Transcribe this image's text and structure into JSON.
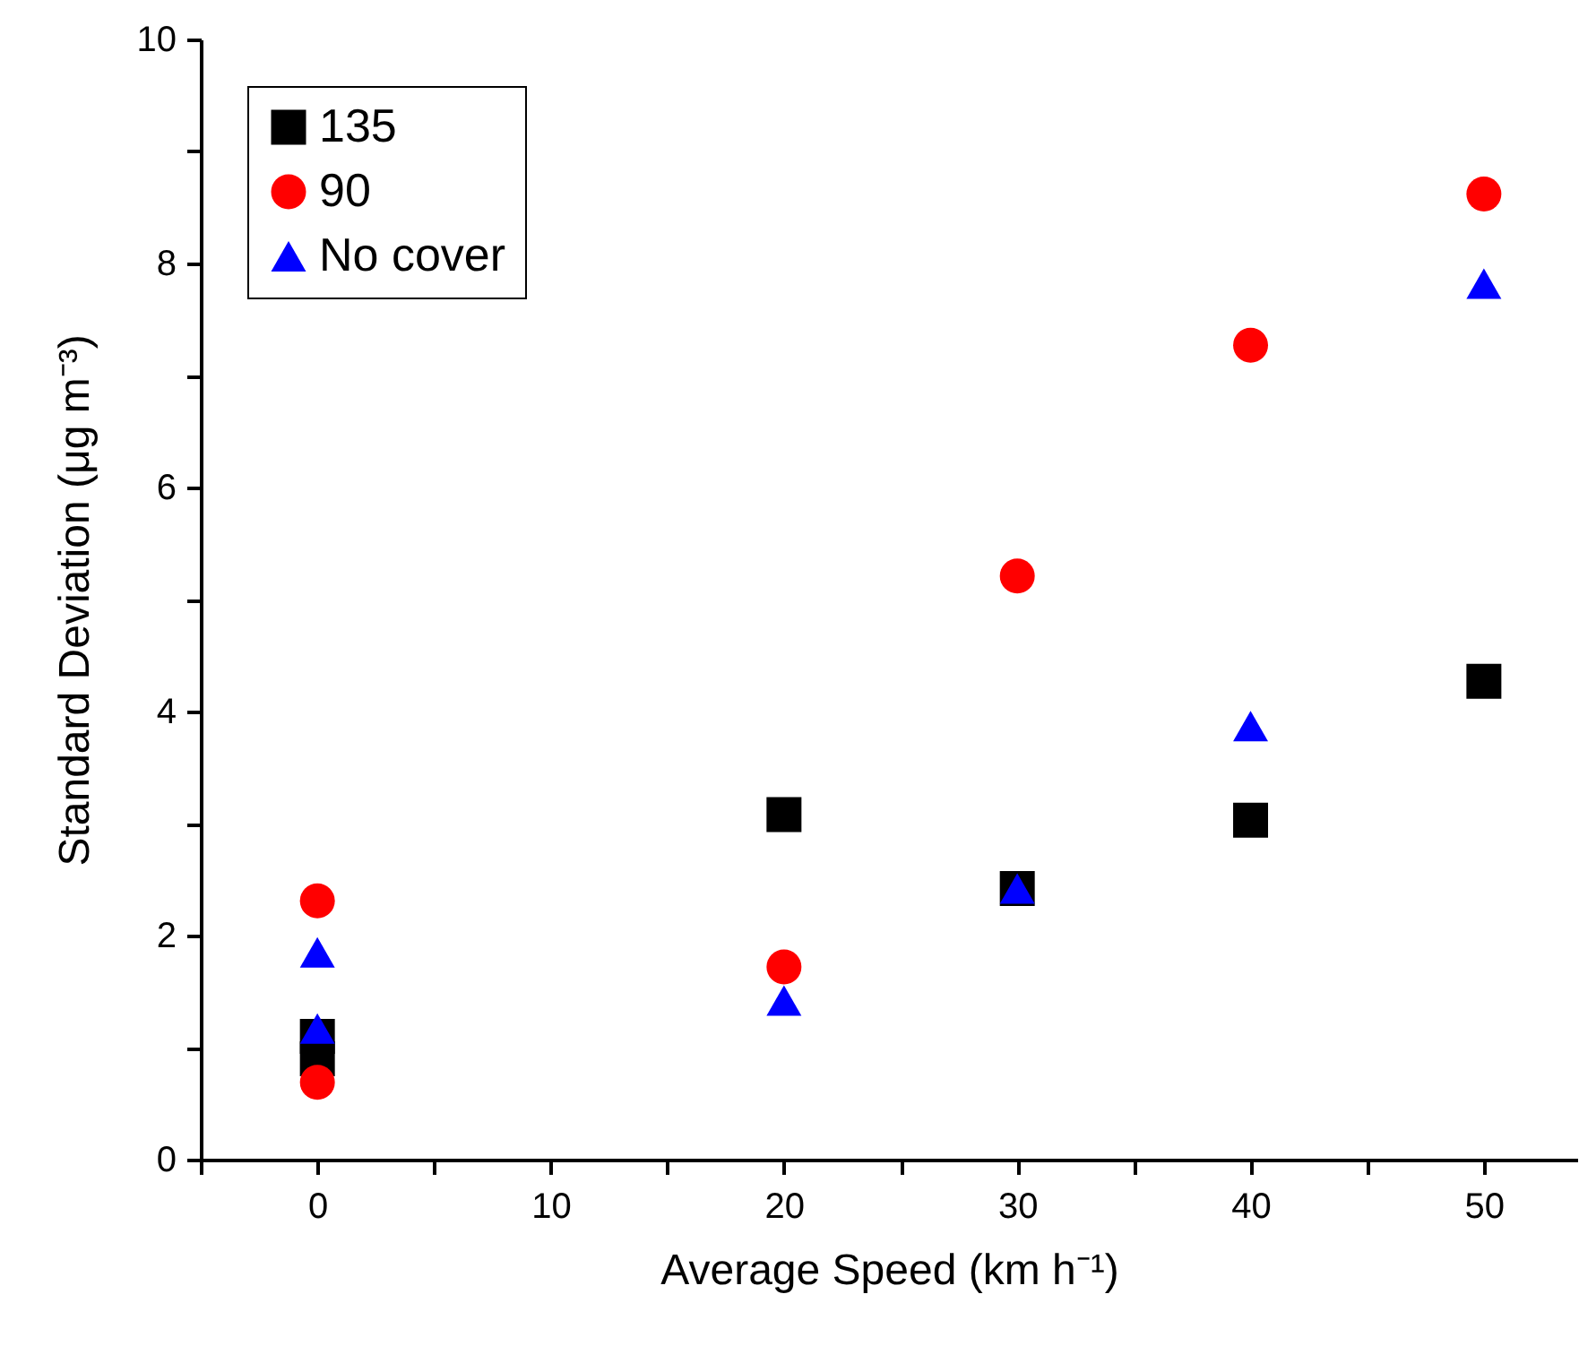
{
  "chart_data": {
    "type": "scatter",
    "xlabel": "Average Speed  (km h⁻¹)",
    "ylabel": "Standard Deviation  (μg m⁻³)",
    "xlim": [
      -5,
      54
    ],
    "ylim": [
      0,
      10
    ],
    "xticks": [
      {
        "value": -5,
        "label": null
      },
      0,
      {
        "value": 5,
        "label": null
      },
      10,
      {
        "value": 15,
        "label": null
      },
      20,
      {
        "value": 25,
        "label": null
      },
      30,
      {
        "value": 35,
        "label": null
      },
      40,
      {
        "value": 45,
        "label": null
      },
      50
    ],
    "yticks": [
      0,
      {
        "value": 1,
        "label": null
      },
      2,
      {
        "value": 3,
        "label": null
      },
      4,
      {
        "value": 5,
        "label": null
      },
      6,
      {
        "value": 7,
        "label": null
      },
      8,
      {
        "value": 9,
        "label": null
      },
      10
    ],
    "legend": "top left",
    "series": [
      {
        "name": "135",
        "color": "#000000",
        "marker": "square",
        "x": [
          0,
          0,
          20,
          30,
          40,
          50
        ],
        "values": [
          1.1,
          0.9,
          3.08,
          2.42,
          3.03,
          4.27
        ]
      },
      {
        "name": "90",
        "color": "#ff0000",
        "marker": "circle",
        "x": [
          0,
          0,
          20,
          30,
          40,
          50
        ],
        "values": [
          2.31,
          0.69,
          1.72,
          5.21,
          7.27,
          8.62
        ]
      },
      {
        "name": "No cover",
        "color": "#0000ff",
        "marker": "triangle",
        "x": [
          0,
          0,
          20,
          30,
          40,
          50
        ],
        "values": [
          1.85,
          1.17,
          1.42,
          2.42,
          3.87,
          7.82
        ]
      }
    ]
  }
}
